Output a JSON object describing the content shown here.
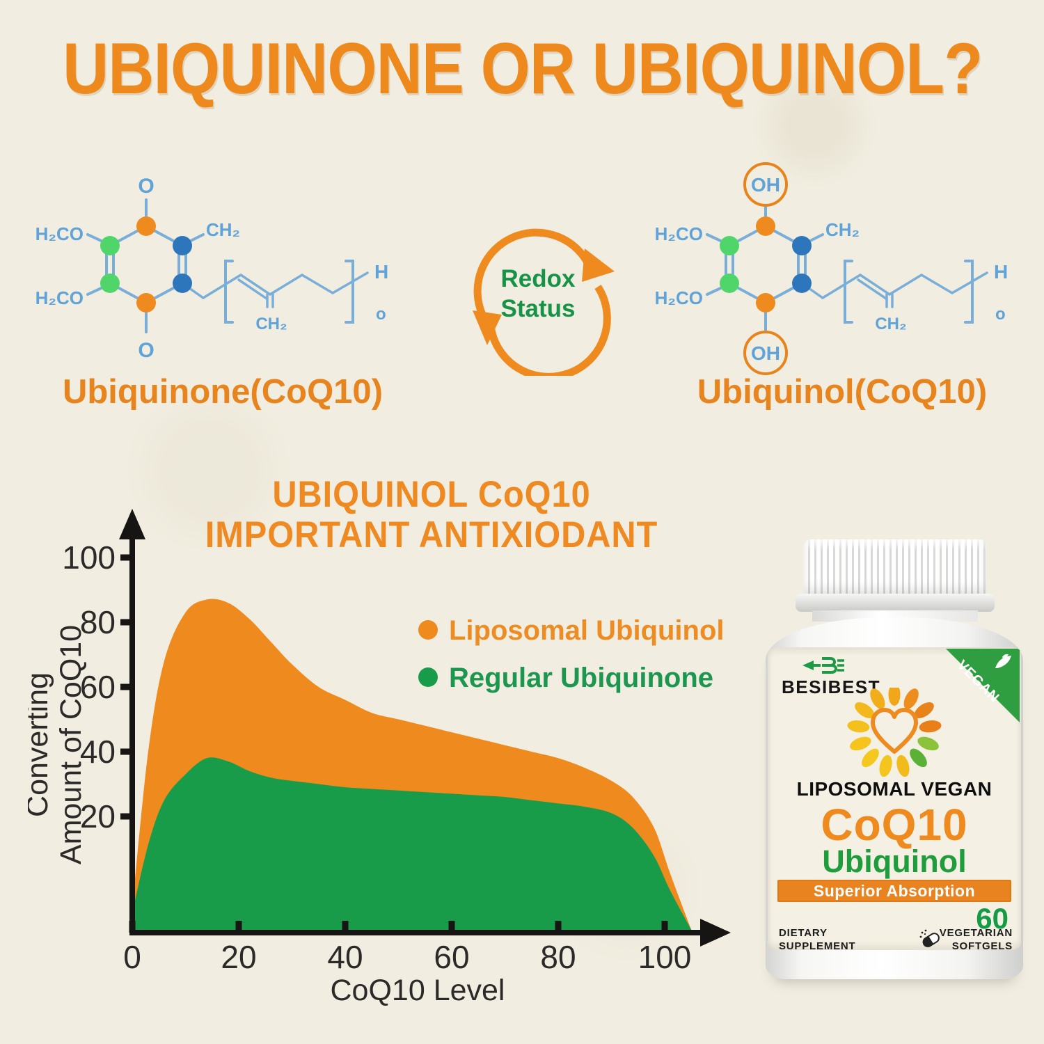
{
  "title": "UBIQUINONE OR UBIQUINOL?",
  "colors": {
    "accent_orange": "#ee8a1d",
    "accent_green": "#189c49",
    "molecule_line_blue": "#79aed8",
    "molecule_text_blue": "#5fa3d8",
    "node_blue": "#2d76bb",
    "node_green": "#50d56a",
    "node_orange": "#ef8a1e",
    "axis_black": "#161513",
    "background": "#f1ede0"
  },
  "molecules": {
    "redox": {
      "line1": "Redox",
      "line2": "Status"
    },
    "left": {
      "caption": "Ubiquinone(CoQ10)",
      "top": "O",
      "bottom": "O",
      "methoxy_top": "H₂CO",
      "methoxy_bottom": "H₂CO",
      "methyl": "CH₂",
      "chain": "CH₂",
      "end_h": "H",
      "end_o": "o"
    },
    "right": {
      "caption": "Ubiquinol(CoQ10)",
      "top": "OH",
      "bottom": "OH",
      "methoxy_top": "H₂CO",
      "methoxy_bottom": "H₂CO",
      "methyl": "CH₂",
      "chain": "CH₂",
      "end_h": "H",
      "end_o": "o"
    }
  },
  "chart_data": {
    "type": "area",
    "title_line1": "UBIQUINOL CoQ10",
    "title_line2": "IMPORTANT ANTIXIODANT",
    "xlabel": "CoQ10 Level",
    "ylabel_line1": "Converting",
    "ylabel_line2": "Amount of CoQ10",
    "x_ticks": [
      0,
      20,
      40,
      60,
      80,
      100
    ],
    "y_ticks": [
      20,
      40,
      60,
      80,
      100
    ],
    "xlim": [
      0,
      108
    ],
    "ylim": [
      0,
      105
    ],
    "grid": false,
    "legend_position": "inside top-right",
    "legend": [
      {
        "label": "Liposomal Ubiquinol",
        "color": "#ef8a1e",
        "text_color": "#ee8c24"
      },
      {
        "label": "Regular Ubiquinone",
        "color": "#189c49",
        "text_color": "#1d9750"
      }
    ],
    "series": [
      {
        "name": "Liposomal Ubiquinol",
        "color": "#ef8a1e",
        "x": [
          0,
          3,
          6,
          10,
          14,
          18,
          22,
          26,
          30,
          35,
          40,
          45,
          50,
          55,
          60,
          65,
          70,
          75,
          80,
          85,
          90,
          94,
          98,
          101,
          105
        ],
        "y": [
          4,
          40,
          68,
          83,
          87,
          86,
          81,
          74,
          67,
          60,
          56,
          52,
          50,
          48,
          46,
          44,
          42,
          40,
          38,
          35,
          31,
          26,
          18,
          10,
          0
        ]
      },
      {
        "name": "Regular Ubiquinone",
        "color": "#189c49",
        "x": [
          0,
          3,
          6,
          10,
          14,
          18,
          22,
          26,
          30,
          35,
          40,
          45,
          50,
          55,
          60,
          65,
          70,
          75,
          80,
          85,
          90,
          94,
          98,
          101,
          105
        ],
        "y": [
          3,
          15,
          25,
          33,
          38,
          37,
          34,
          32,
          31,
          30,
          29,
          28.5,
          28,
          27.5,
          27,
          26.5,
          26,
          25,
          24,
          23,
          21,
          18,
          13,
          7,
          0
        ]
      }
    ]
  },
  "product": {
    "brand": "BESIBEST",
    "vegan_badge": "VEGAN",
    "line1": "LIPOSOMAL VEGAN",
    "line2": "CoQ10",
    "line3": "Ubiquinol",
    "banner": "Superior Absorption",
    "count": "60",
    "left_small_line1": "DIETARY",
    "left_small_line2": "SUPPLEMENT",
    "right_small_line1": "VEGETARIAN",
    "right_small_line2": "SOFTGELS",
    "sunburst_petals": [
      "#f2a619",
      "#ee8c1c",
      "#e8821a",
      "#e87f19",
      "#8bc43c",
      "#5bb135",
      "#f0bb1b",
      "#f4c51d",
      "#f5c81f",
      "#f5c51e",
      "#f4c01d",
      "#f3b81c",
      "#f2ad1a"
    ]
  }
}
